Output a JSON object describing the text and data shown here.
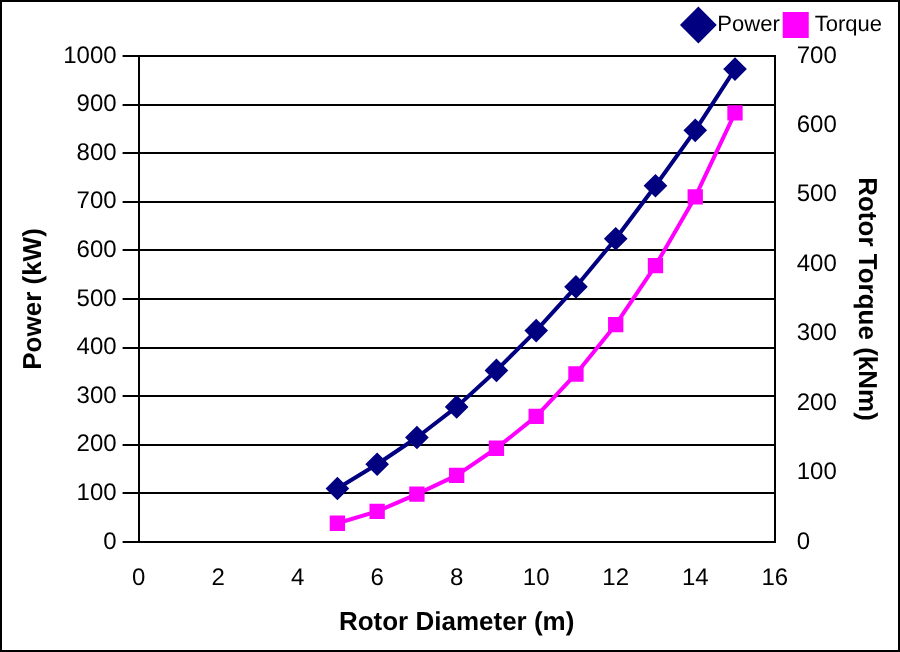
{
  "chart_data": {
    "type": "line",
    "xlabel": "Rotor Diameter (m)",
    "ylabel": "Power (kW)",
    "y2label": "Rotor Torque (kNm)",
    "x": [
      5,
      6,
      7,
      8,
      9,
      10,
      11,
      12,
      13,
      14,
      15
    ],
    "series": [
      {
        "name": "Power",
        "color": "#000080",
        "marker": "diamond",
        "values": [
          110,
          160,
          215,
          278,
          353,
          435,
          525,
          624,
          733,
          847,
          973
        ]
      },
      {
        "name": "Torque",
        "color": "#ff00ff",
        "marker": "square",
        "axis": "y2",
        "values": [
          27,
          44,
          69,
          96,
          135,
          181,
          242,
          313,
          398,
          497,
          618
        ]
      }
    ],
    "xlim": [
      0,
      16
    ],
    "xticks": [
      0,
      2,
      4,
      6,
      8,
      10,
      12,
      14,
      16
    ],
    "ylim": [
      0,
      1000
    ],
    "yticks": [
      0,
      100,
      200,
      300,
      400,
      500,
      600,
      700,
      800,
      900,
      1000
    ],
    "y2lim": [
      0,
      700
    ],
    "y2ticks": [
      0,
      100,
      200,
      300,
      400,
      500,
      600,
      700
    ],
    "grid": "y",
    "legend": "top right",
    "line_style": "solid"
  }
}
